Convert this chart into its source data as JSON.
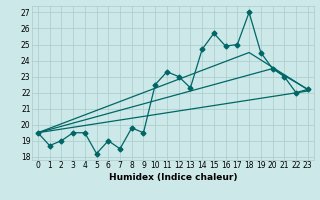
{
  "title": "",
  "xlabel": "Humidex (Indice chaleur)",
  "ylabel": "",
  "bg_color": "#cce8e8",
  "grid_color": "#aacccc",
  "line_color": "#006666",
  "xlim": [
    -0.5,
    23.5
  ],
  "ylim": [
    17.8,
    27.4
  ],
  "xticks": [
    0,
    1,
    2,
    3,
    4,
    5,
    6,
    7,
    8,
    9,
    10,
    11,
    12,
    13,
    14,
    15,
    16,
    17,
    18,
    19,
    20,
    21,
    22,
    23
  ],
  "yticks": [
    18,
    19,
    20,
    21,
    22,
    23,
    24,
    25,
    26,
    27
  ],
  "main_series": [
    19.5,
    18.7,
    19.0,
    19.5,
    19.5,
    18.2,
    19.0,
    18.5,
    19.8,
    19.5,
    22.5,
    23.3,
    23.0,
    22.3,
    24.7,
    25.7,
    24.9,
    25.0,
    27.0,
    24.5,
    23.5,
    23.0,
    22.0,
    22.2
  ],
  "trend1_x": [
    0,
    23
  ],
  "trend1_y": [
    19.5,
    22.1
  ],
  "trend2_x": [
    0,
    18,
    23
  ],
  "trend2_y": [
    19.5,
    24.5,
    22.2
  ],
  "trend3_x": [
    0,
    20,
    23
  ],
  "trend3_y": [
    19.5,
    23.5,
    22.2
  ],
  "marker": "D",
  "markersize": 2.5,
  "linewidth": 0.9,
  "tick_fontsize": 5.5,
  "xlabel_fontsize": 6.5
}
